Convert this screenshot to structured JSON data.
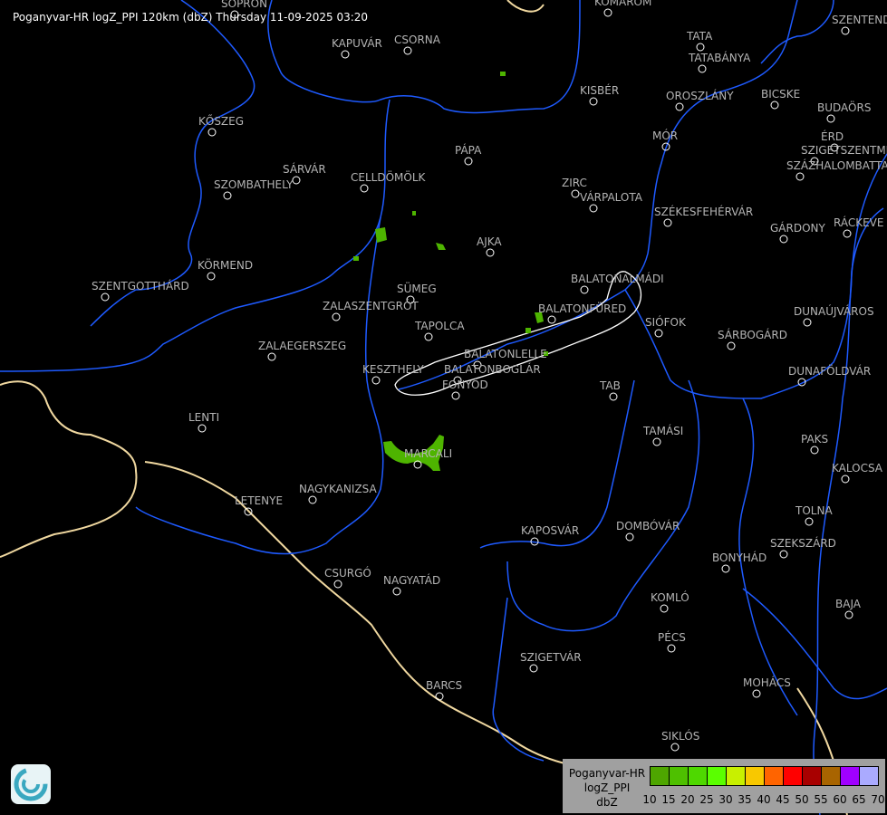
{
  "title": "Poganyvar-HR logZ_PPI 120km (dbZ) Thursday 11-09-2025 03:20",
  "cities": [
    "SOPRON",
    "KOMÁROM",
    "SZENTENDRE",
    "KAPUVÁR",
    "CSORNA",
    "TATA",
    "TATABÁNYA",
    "KISBÉR",
    "OROSZLÁNY",
    "BICSKE",
    "BUDAÖRS",
    "KŐSZEG",
    "MÓR",
    "ÉRD",
    "SZIGETSZENTMIKLÓS",
    "SZÁZHALOMBATTA",
    "PÁPA",
    "SÁRVÁR",
    "CELLDÖMÖLK",
    "SZOMBATHELY",
    "ZIRC",
    "VÁRPALOTA",
    "SZÉKESFEHÉRVÁR",
    "GÁRDONY",
    "RÁCKEVE",
    "AJKA",
    "KÖRMEND",
    "BALATONALMÁDI",
    "SZENTGOTTHÁRD",
    "SÜMEG",
    "ZALASZENTGRÓT",
    "BALATONFÜRED",
    "SIÓFOK",
    "DUNAÚJVÁROS",
    "TAPOLCA",
    "ZALAEGERSZEG",
    "SÁRBOGÁRD",
    "BALATONLELLE",
    "KESZTHELY",
    "BALATONBOGLÁR",
    "DUNAFÖLDVÁR",
    "FONYÓD",
    "TAB",
    "LENTI",
    "TAMÁSI",
    "PAKS",
    "MARCALI",
    "KALOCSA",
    "LETENYE",
    "NAGYKANIZSA",
    "TOLNA",
    "KAPOSVÁR",
    "DOMBÓVÁR",
    "SZEKSZÁRD",
    "BONYHÁD",
    "CSURGÓ",
    "NAGYATÁD",
    "KOMLÓ",
    "BAJA",
    "PÉCS",
    "SZIGETVÁR",
    "MOHÁCS",
    "BARCS",
    "SIKLÓS"
  ],
  "legend": {
    "lines": [
      "Poganyvar-HR",
      "logZ_PPI",
      "dbZ"
    ],
    "colors": [
      "#4ea600",
      "#4ec000",
      "#4ed800",
      "#5aff00",
      "#c8f000",
      "#f8c800",
      "#ff6400",
      "#ff0000",
      "#a80000",
      "#a86400",
      "#a000ff",
      "#aaaaff"
    ],
    "ticks": [
      "10",
      "15",
      "20",
      "25",
      "30",
      "35",
      "40",
      "45",
      "50",
      "55",
      "60",
      "65",
      "70"
    ]
  },
  "echo_color": "#4eb400",
  "river_color": "#1e5aff",
  "border_color": "#f0d8a0"
}
